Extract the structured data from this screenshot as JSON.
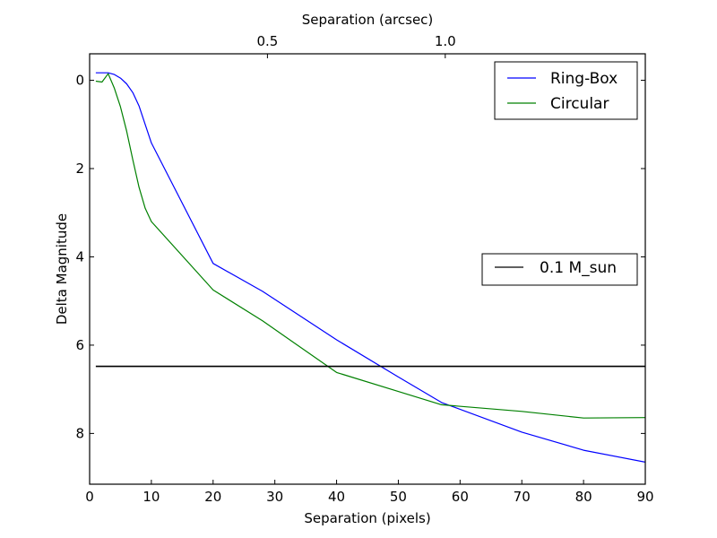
{
  "chart_data": {
    "type": "line",
    "xlabel": "Separation (pixels)",
    "ylabel": "Delta Magnitude",
    "top_xlabel": "Separation (arcsec)",
    "xlim": [
      0,
      90
    ],
    "ylim": [
      9.15,
      -0.6
    ],
    "x_ticks": [
      0,
      10,
      20,
      30,
      40,
      50,
      60,
      70,
      80,
      90
    ],
    "y_ticks": [
      0,
      2,
      4,
      6,
      8
    ],
    "top_ticks": [
      {
        "label": "0.5",
        "x": 28.8
      },
      {
        "label": "1.0",
        "x": 57.6
      }
    ],
    "series": [
      {
        "name": "Ring-Box",
        "color": "#0000ff",
        "points": [
          [
            1,
            -0.17
          ],
          [
            2,
            -0.17
          ],
          [
            3,
            -0.17
          ],
          [
            4,
            -0.13
          ],
          [
            5,
            -0.05
          ],
          [
            6,
            0.08
          ],
          [
            7,
            0.28
          ],
          [
            8,
            0.58
          ],
          [
            9,
            1.0
          ],
          [
            10,
            1.42
          ],
          [
            20,
            4.15
          ],
          [
            28,
            4.78
          ],
          [
            40,
            5.88
          ],
          [
            50,
            6.72
          ],
          [
            57,
            7.3
          ],
          [
            70,
            7.97
          ],
          [
            80,
            8.38
          ],
          [
            90,
            8.65
          ]
        ]
      },
      {
        "name": "Circular",
        "color": "#008000",
        "points": [
          [
            1,
            0.02
          ],
          [
            2,
            0.04
          ],
          [
            3,
            -0.15
          ],
          [
            4,
            0.18
          ],
          [
            5,
            0.6
          ],
          [
            6,
            1.15
          ],
          [
            7,
            1.8
          ],
          [
            8,
            2.42
          ],
          [
            9,
            2.9
          ],
          [
            10,
            3.2
          ],
          [
            20,
            4.75
          ],
          [
            28,
            5.45
          ],
          [
            40,
            6.62
          ],
          [
            50,
            7.05
          ],
          [
            57,
            7.35
          ],
          [
            70,
            7.5
          ],
          [
            80,
            7.65
          ],
          [
            90,
            7.64
          ]
        ]
      }
    ],
    "hline": {
      "name": "0.1 M_sun",
      "y": 6.48,
      "x_start": 1,
      "x_end": 90,
      "color": "#000000"
    },
    "legends": [
      {
        "entries": [
          "Ring-Box",
          "Circular"
        ],
        "placement": "top-right"
      },
      {
        "entries": [
          "0.1 M_sun"
        ],
        "placement": "center-right"
      }
    ]
  }
}
